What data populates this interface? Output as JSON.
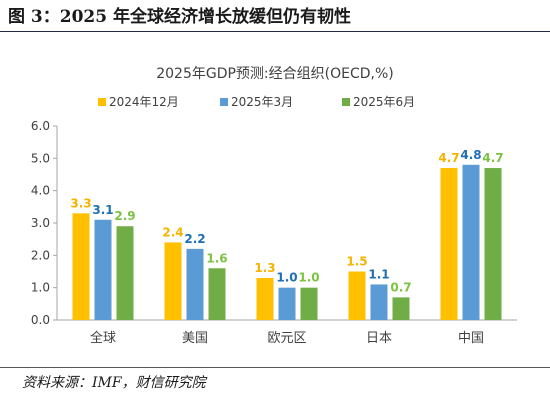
{
  "figure_title": "图 3：2025 年全球经济增长放缓但仍有韧性",
  "source_note": "资料来源：IMF，财信研究院",
  "chart_data": {
    "type": "bar",
    "title": "2025年GDP预测:经合组织(OECD,%)",
    "categories": [
      "全球",
      "美国",
      "欧元区",
      "日本",
      "中国"
    ],
    "series": [
      {
        "name": "2024年12月",
        "color": "#FFC000",
        "label_color": "#F4B400",
        "values": [
          3.3,
          2.4,
          1.3,
          1.5,
          4.7
        ]
      },
      {
        "name": "2025年3月",
        "color": "#5B9BD5",
        "label_color": "#1F6FB5",
        "values": [
          3.1,
          2.2,
          1.0,
          1.1,
          4.8
        ]
      },
      {
        "name": "2025年6月",
        "color": "#70AD47",
        "label_color": "#7CC242",
        "values": [
          2.9,
          1.6,
          1.0,
          0.7,
          4.7
        ]
      }
    ],
    "ylim": [
      0,
      6
    ],
    "yticks": [
      "0.0",
      "1.0",
      "2.0",
      "3.0",
      "4.0",
      "5.0",
      "6.0"
    ],
    "legend_position": "top",
    "grid": false
  }
}
